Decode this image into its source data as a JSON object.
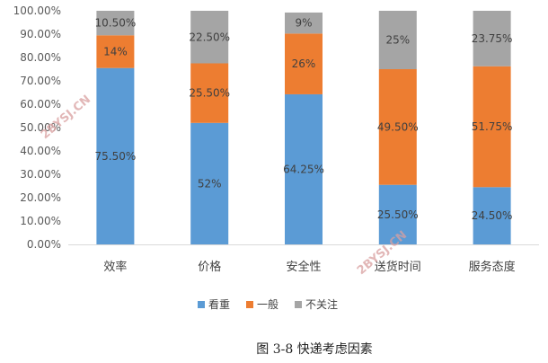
{
  "chart_data": {
    "type": "bar",
    "stacked": true,
    "categories": [
      "效率",
      "价格",
      "安全性",
      "送货时间",
      "服务态度"
    ],
    "series": [
      {
        "name": "看重",
        "values": [
          75.5,
          52,
          64.25,
          25.5,
          24.5
        ],
        "labels": [
          "75.50%",
          "52%",
          "64.25%",
          "25.50%",
          "24.50%"
        ],
        "color": "#5b9bd5"
      },
      {
        "name": "一般",
        "values": [
          14,
          25.5,
          26,
          49.5,
          51.75
        ],
        "labels": [
          "14%",
          "25.50%",
          "26%",
          "49.50%",
          "51.75%"
        ],
        "color": "#ed7d31"
      },
      {
        "name": "不关注",
        "values": [
          10.5,
          22.5,
          9,
          25,
          23.75
        ],
        "labels": [
          "10.50%",
          "22.50%",
          "9%",
          "25%",
          "23.75%"
        ],
        "color": "#a5a5a5"
      }
    ],
    "ylim": [
      0,
      100
    ],
    "yticks": [
      "0.00%",
      "10.00%",
      "20.00%",
      "30.00%",
      "40.00%",
      "50.00%",
      "60.00%",
      "70.00%",
      "80.00%",
      "90.00%",
      "100.00%"
    ],
    "grid": false,
    "legend_position": "bottom"
  },
  "caption": "图 3-8 快递考虑因素",
  "watermark": "2BYSJ.CN"
}
